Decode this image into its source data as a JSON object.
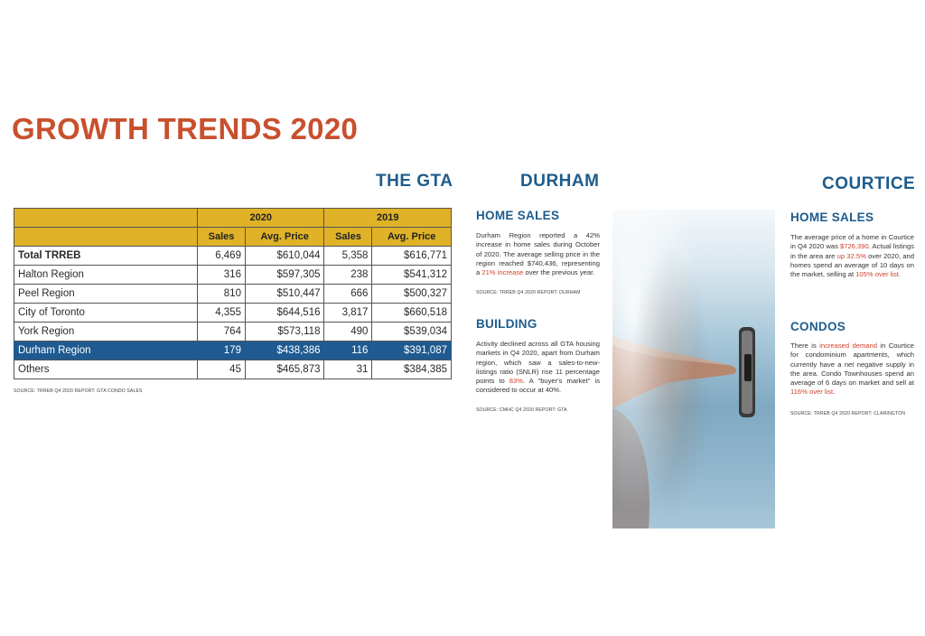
{
  "title": "GROWTH TRENDS 2020",
  "gta": {
    "heading": "THE GTA",
    "table": {
      "year_headers": [
        "2020",
        "2019"
      ],
      "sub_headers": [
        "Sales",
        "Avg. Price",
        "Sales",
        "Avg. Price"
      ],
      "rows": [
        {
          "region": "Total TRREB",
          "s2020": "6,469",
          "p2020": "$610,044",
          "s2019": "5,358",
          "p2019": "$616,771"
        },
        {
          "region": "Halton Region",
          "s2020": "316",
          "p2020": "$597,305",
          "s2019": "238",
          "p2019": "$541,312"
        },
        {
          "region": "Peel Region",
          "s2020": "810",
          "p2020": "$510,447",
          "s2019": "666",
          "p2019": "$500,327"
        },
        {
          "region": "City of Toronto",
          "s2020": "4,355",
          "p2020": "$644,516",
          "s2019": "3,817",
          "p2019": "$660,518"
        },
        {
          "region": "York Region",
          "s2020": "764",
          "p2020": "$573,118",
          "s2019": "490",
          "p2019": "$539,034"
        },
        {
          "region": "Durham Region",
          "s2020": "179",
          "p2020": "$438,386",
          "s2019": "116",
          "p2019": "$391,087"
        },
        {
          "region": "Others",
          "s2020": "45",
          "p2020": "$465,873",
          "s2019": "31",
          "p2019": "$384,385"
        }
      ]
    },
    "source": "SOURCE: TRREB Q4 2020 REPORT: GTA CONDO SALES"
  },
  "durham": {
    "heading": "DURHAM",
    "home_sales": {
      "heading": "HOME SALES",
      "text_a": "Durham Region reported a 42% increase in home sales during October of 2020. The average selling price in the region reached $740,436, representing a ",
      "text_red": "21% increase",
      "text_b": " over the previous year.",
      "source": "SOURCE: TRREB Q4 2020 REPORT: DURHAM"
    },
    "building": {
      "heading": "BUILDING",
      "text_a": "Activity declined across all GTA housing markets in Q4 2020, apart from Durham region, which saw a sales-to-new-listings ratio (SNLR) rise 11 percentage points to ",
      "text_red": "83%",
      "text_b": ". A \"buyer's market\" is considered to occur at 40%.",
      "source": "SOURCE: CMHC Q4 2020 REPORT: GTA"
    }
  },
  "courtice": {
    "heading": "COURTICE",
    "home_sales": {
      "heading": "HOME SALES",
      "text_a": "The average price of a home in Courtice in Q4 2020 was ",
      "text_red1": "$726,390",
      "text_b": ". Actual listings in the area are ",
      "text_red2": "up 32.5%",
      "text_c": " over 2020, and homes spend an average of 10 days on the market, selling at ",
      "text_red3": "105% over list",
      "text_d": "."
    },
    "condos": {
      "heading": "CONDOS",
      "text_a": "There is ",
      "text_red1": "increased demand",
      "text_b": " in Courtice for condominium apartments, which currently have a net negative supply in the area. Condo Townhouses spend an average of 6 days on market and sell at ",
      "text_red2": "116% over list",
      "text_c": "."
    },
    "source": "SOURCE: TRREB Q4 2020 REPORT: CLARINGTON"
  },
  "colors": {
    "title": "#c8502d",
    "heading": "#1e5c8c",
    "table_header": "#dfb227",
    "highlight_row": "#1f5b91",
    "accent_red": "#d1402a"
  }
}
